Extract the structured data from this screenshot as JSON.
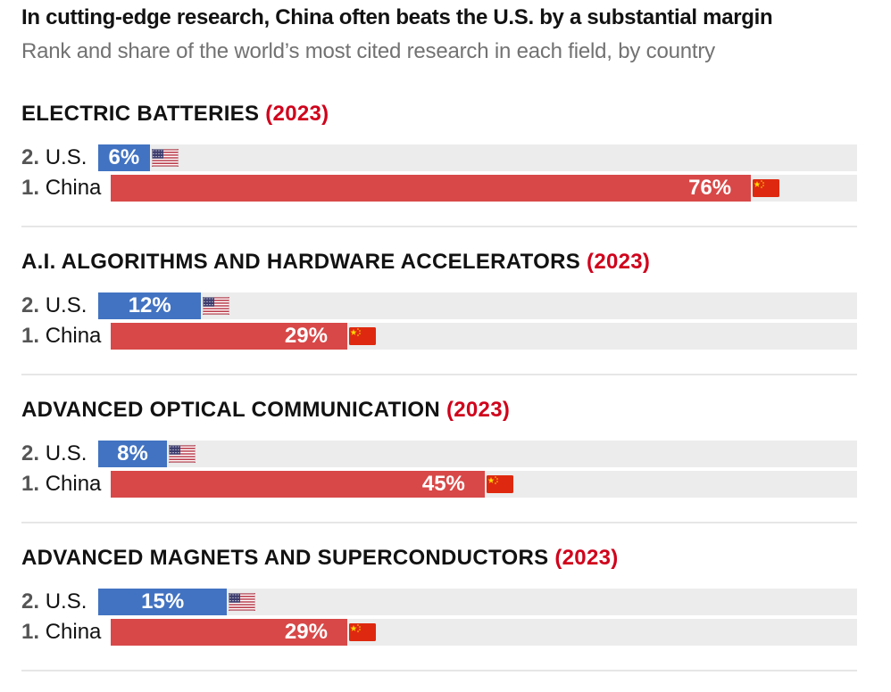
{
  "title": "In cutting-edge research, China often beats the U.S. by a substantial margin",
  "subtitle": "Rank and share of the world’s most cited research in each field, by country",
  "colors": {
    "us": "#4273c2",
    "china": "#d84848",
    "track": "#ececec",
    "year": "#d0021b"
  },
  "chart_data": {
    "type": "bar",
    "orientation": "horizontal",
    "title": "In cutting-edge research, China often beats the U.S. by a substantial margin",
    "subtitle": "Rank and share of the world’s most cited research in each field, by country",
    "xlim": [
      0,
      100
    ],
    "unit": "%",
    "panels": [
      {
        "field": "ELECTRIC BATTERIES",
        "year": "(2023)",
        "rows": [
          {
            "rank": "2.",
            "country": "U.S.",
            "value": 6,
            "label": "6%",
            "flag": "us-flag-icon"
          },
          {
            "rank": "1.",
            "country": "China",
            "value": 76,
            "label": "76%",
            "flag": "china-flag-icon"
          }
        ]
      },
      {
        "field": "A.I. ALGORITHMS AND HARDWARE ACCELERATORS",
        "year": "(2023)",
        "rows": [
          {
            "rank": "2.",
            "country": "U.S.",
            "value": 12,
            "label": "12%",
            "flag": "us-flag-icon"
          },
          {
            "rank": "1.",
            "country": "China",
            "value": 29,
            "label": "29%",
            "flag": "china-flag-icon"
          }
        ]
      },
      {
        "field": "ADVANCED OPTICAL COMMUNICATION",
        "year": "(2023)",
        "rows": [
          {
            "rank": "2.",
            "country": "U.S.",
            "value": 8,
            "label": "8%",
            "flag": "us-flag-icon"
          },
          {
            "rank": "1.",
            "country": "China",
            "value": 45,
            "label": "45%",
            "flag": "china-flag-icon"
          }
        ]
      },
      {
        "field": "ADVANCED MAGNETS AND SUPERCONDUCTORS",
        "year": "(2023)",
        "rows": [
          {
            "rank": "2.",
            "country": "U.S.",
            "value": 15,
            "label": "15%",
            "flag": "us-flag-icon"
          },
          {
            "rank": "1.",
            "country": "China",
            "value": 29,
            "label": "29%",
            "flag": "china-flag-icon"
          }
        ]
      }
    ]
  }
}
